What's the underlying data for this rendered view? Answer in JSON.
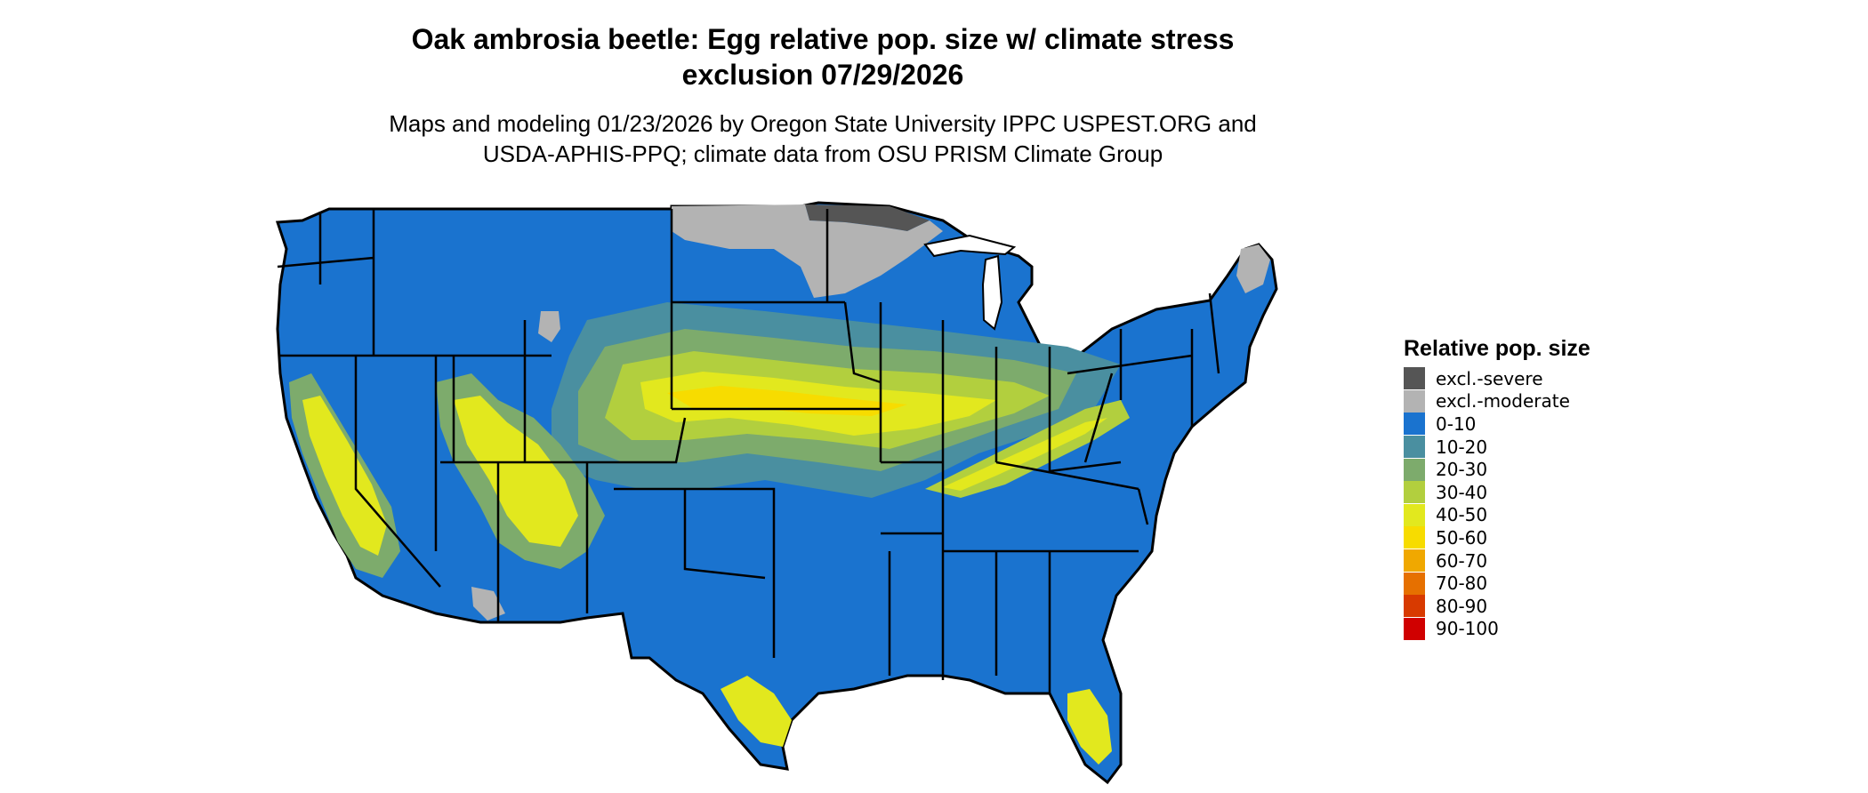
{
  "title_line1": "Oak ambrosia beetle: Egg relative pop. size w/ climate stress",
  "title_line2": "exclusion 07/29/2026",
  "subtitle_line1": "Maps and modeling 01/23/2026 by Oregon State University IPPC USPEST.ORG and",
  "subtitle_line2": "USDA-APHIS-PPQ; climate data from OSU PRISM Climate Group",
  "legend": {
    "title": "Relative pop. size",
    "items": [
      {
        "label": "excl.-severe",
        "color": "#555555"
      },
      {
        "label": "excl.-moderate",
        "color": "#b3b3b3"
      },
      {
        "label": "0-10",
        "color": "#1a73cf"
      },
      {
        "label": "10-20",
        "color": "#4a8fa0"
      },
      {
        "label": "20-30",
        "color": "#7dab6c"
      },
      {
        "label": "30-40",
        "color": "#b2cf3e"
      },
      {
        "label": "40-50",
        "color": "#e2e81e"
      },
      {
        "label": "50-60",
        "color": "#f7dc00"
      },
      {
        "label": "60-70",
        "color": "#f0a800"
      },
      {
        "label": "70-80",
        "color": "#e67000"
      },
      {
        "label": "80-90",
        "color": "#d83a00"
      },
      {
        "label": "90-100",
        "color": "#d00000"
      }
    ]
  }
}
